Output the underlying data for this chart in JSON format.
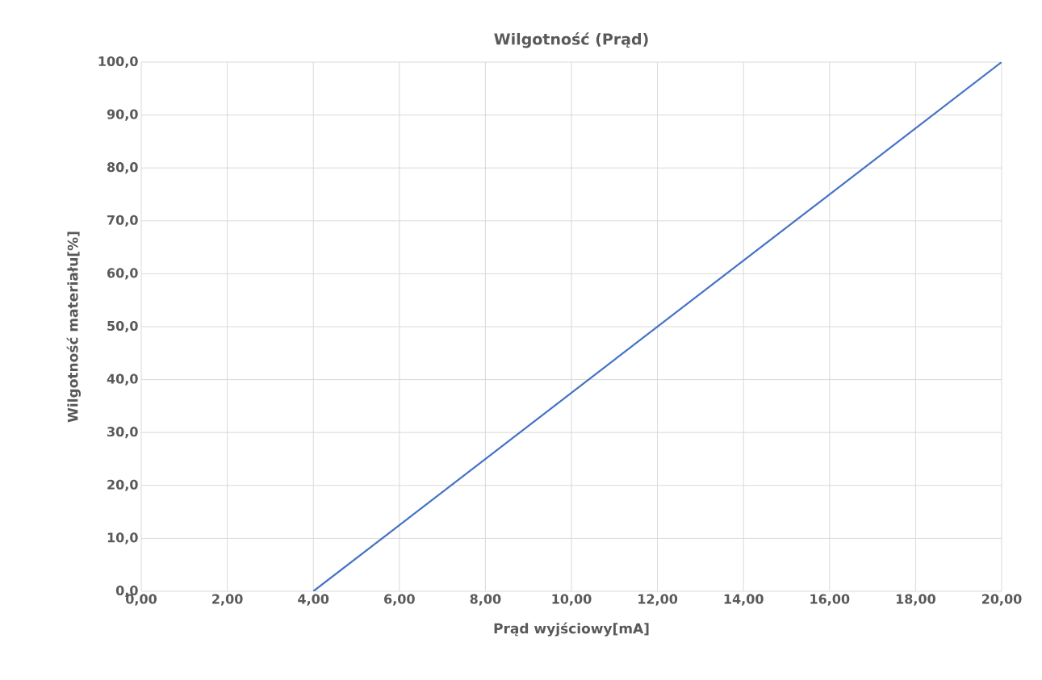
{
  "chart_data": {
    "type": "line",
    "title": "Wilgotność (Prąd)",
    "xlabel": "Prąd wyjściowy[mA]",
    "ylabel": "Wilgotność materiału[%]",
    "x": [
      4,
      20
    ],
    "series": [
      {
        "color": "#4472c4",
        "values": [
          0,
          100
        ]
      }
    ],
    "xlim": [
      0,
      20
    ],
    "ylim": [
      0,
      100
    ],
    "xticks": [
      {
        "value": 0,
        "label": "0,00"
      },
      {
        "value": 2,
        "label": "2,00"
      },
      {
        "value": 4,
        "label": "4,00"
      },
      {
        "value": 6,
        "label": "6,00"
      },
      {
        "value": 8,
        "label": "8,00"
      },
      {
        "value": 10,
        "label": "10,00"
      },
      {
        "value": 12,
        "label": "12,00"
      },
      {
        "value": 14,
        "label": "14,00"
      },
      {
        "value": 16,
        "label": "16,00"
      },
      {
        "value": 18,
        "label": "18,00"
      },
      {
        "value": 20,
        "label": "20,00"
      }
    ],
    "yticks": [
      {
        "value": 0,
        "label": "0,0"
      },
      {
        "value": 10,
        "label": "10,0"
      },
      {
        "value": 20,
        "label": "20,0"
      },
      {
        "value": 30,
        "label": "30,0"
      },
      {
        "value": 40,
        "label": "40,0"
      },
      {
        "value": 50,
        "label": "50,0"
      },
      {
        "value": 60,
        "label": "60,0"
      },
      {
        "value": 70,
        "label": "70,0"
      },
      {
        "value": 80,
        "label": "80,0"
      },
      {
        "value": 90,
        "label": "90,0"
      },
      {
        "value": 100,
        "label": "100,0"
      }
    ],
    "grid": true,
    "legend": false,
    "marker": "none",
    "line_style": "solid"
  }
}
